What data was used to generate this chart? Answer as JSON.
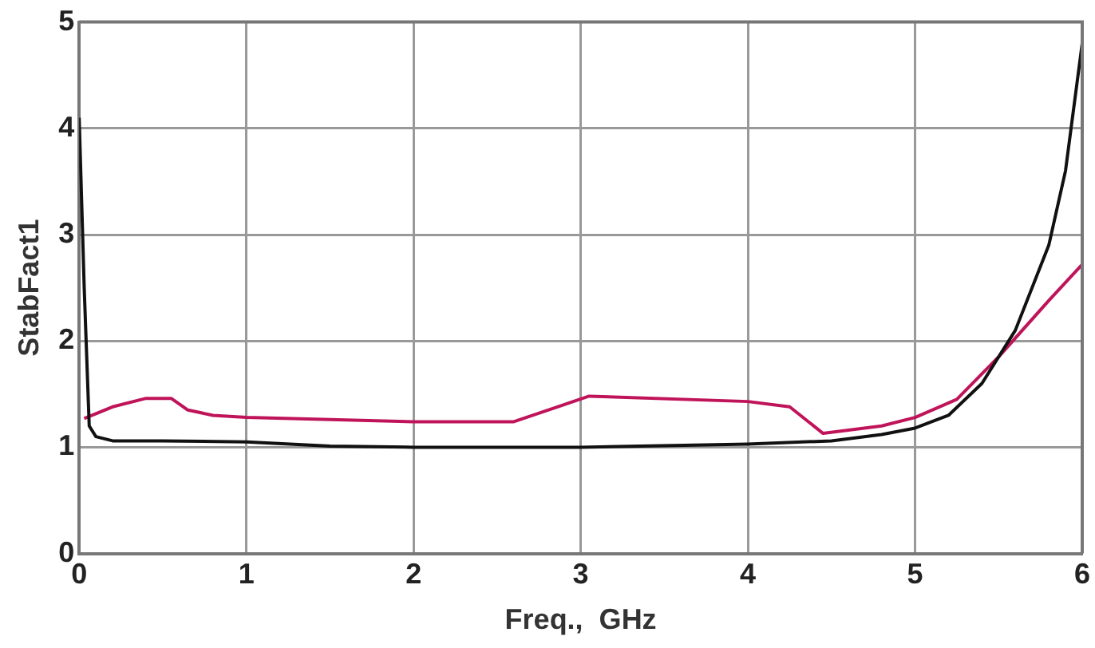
{
  "chart_data": {
    "type": "line",
    "xlabel": "Freq.,  GHz",
    "ylabel": "StabFact1",
    "xlim": [
      0,
      6
    ],
    "xticks": [
      0,
      1,
      2,
      3,
      4,
      5,
      6
    ],
    "ylim": [
      0,
      5
    ],
    "yticks": [
      0,
      1,
      2,
      3,
      4,
      5
    ],
    "grid": true,
    "marker": "none",
    "line_style": "solid",
    "series": [
      {
        "color": "#111111",
        "x": [
          0,
          0.03,
          0.06,
          0.1,
          0.2,
          0.5,
          1,
          1.5,
          2,
          3,
          4,
          4.5,
          4.8,
          5,
          5.2,
          5.4,
          5.6,
          5.8,
          5.9,
          6
        ],
        "values": [
          4.1,
          2.5,
          1.2,
          1.1,
          1.06,
          1.06,
          1.05,
          1.01,
          1.0,
          1.0,
          1.03,
          1.06,
          1.12,
          1.18,
          1.3,
          1.6,
          2.1,
          2.9,
          3.6,
          4.8
        ]
      },
      {
        "color": "#c0145a",
        "x": [
          0.03,
          0.2,
          0.4,
          0.55,
          0.65,
          0.8,
          1,
          2,
          2.6,
          3.05,
          4,
          4.25,
          4.45,
          4.8,
          5,
          5.25,
          5.5,
          5.8,
          6
        ],
        "values": [
          1.27,
          1.38,
          1.46,
          1.46,
          1.35,
          1.3,
          1.28,
          1.24,
          1.24,
          1.48,
          1.43,
          1.38,
          1.13,
          1.2,
          1.28,
          1.45,
          1.85,
          2.38,
          2.72
        ]
      }
    ]
  }
}
